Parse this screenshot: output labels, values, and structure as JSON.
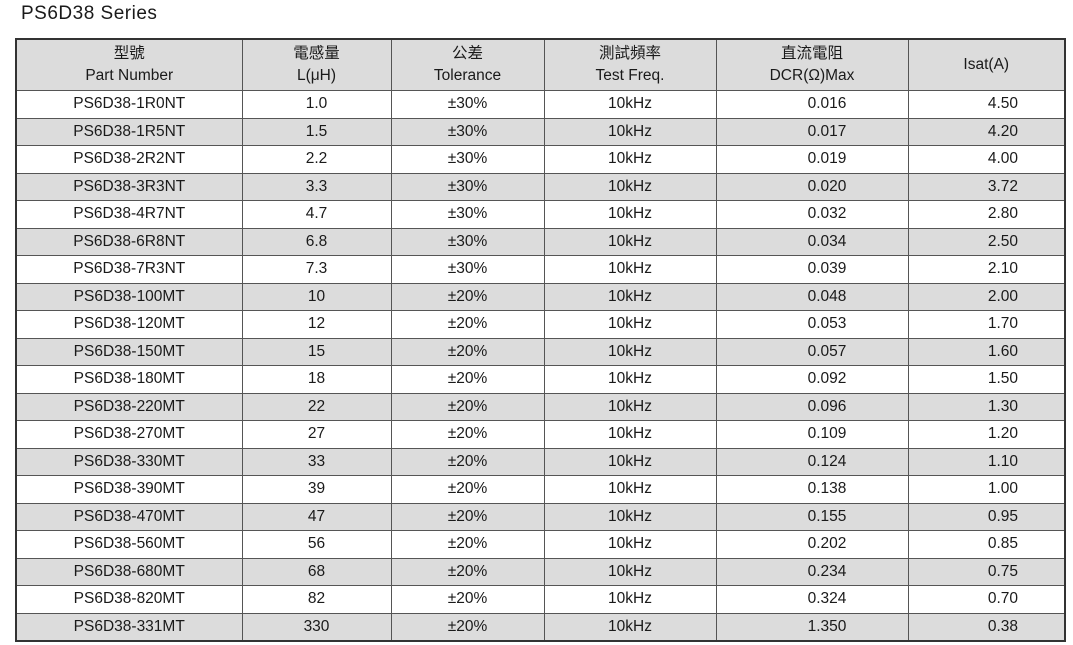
{
  "title": "PS6D38  Series",
  "headers": [
    {
      "zh": "型號",
      "en": "Part Number"
    },
    {
      "zh": "電感量",
      "en": "L(μH)"
    },
    {
      "zh": "公差",
      "en": "Tolerance"
    },
    {
      "zh": "測試頻率",
      "en": "Test Freq."
    },
    {
      "zh": "直流電阻",
      "en": "DCR(Ω)Max"
    },
    {
      "zh": "",
      "en": "Isat(A)"
    }
  ],
  "rows": [
    [
      "PS6D38-1R0NT",
      "1.0",
      "±30%",
      "10kHz",
      "0.016",
      "4.50"
    ],
    [
      "PS6D38-1R5NT",
      "1.5",
      "±30%",
      "10kHz",
      "0.017",
      "4.20"
    ],
    [
      "PS6D38-2R2NT",
      "2.2",
      "±30%",
      "10kHz",
      "0.019",
      "4.00"
    ],
    [
      "PS6D38-3R3NT",
      "3.3",
      "±30%",
      "10kHz",
      "0.020",
      "3.72"
    ],
    [
      "PS6D38-4R7NT",
      "4.7",
      "±30%",
      "10kHz",
      "0.032",
      "2.80"
    ],
    [
      "PS6D38-6R8NT",
      "6.8",
      "±30%",
      "10kHz",
      "0.034",
      "2.50"
    ],
    [
      "PS6D38-7R3NT",
      "7.3",
      "±30%",
      "10kHz",
      "0.039",
      "2.10"
    ],
    [
      "PS6D38-100MT",
      "10",
      "±20%",
      "10kHz",
      "0.048",
      "2.00"
    ],
    [
      "PS6D38-120MT",
      "12",
      "±20%",
      "10kHz",
      "0.053",
      "1.70"
    ],
    [
      "PS6D38-150MT",
      "15",
      "±20%",
      "10kHz",
      "0.057",
      "1.60"
    ],
    [
      "PS6D38-180MT",
      "18",
      "±20%",
      "10kHz",
      "0.092",
      "1.50"
    ],
    [
      "PS6D38-220MT",
      "22",
      "±20%",
      "10kHz",
      "0.096",
      "1.30"
    ],
    [
      "PS6D38-270MT",
      "27",
      "±20%",
      "10kHz",
      "0.109",
      "1.20"
    ],
    [
      "PS6D38-330MT",
      "33",
      "±20%",
      "10kHz",
      "0.124",
      "1.10"
    ],
    [
      "PS6D38-390MT",
      "39",
      "±20%",
      "10kHz",
      "0.138",
      "1.00"
    ],
    [
      "PS6D38-470MT",
      "47",
      "±20%",
      "10kHz",
      "0.155",
      "0.95"
    ],
    [
      "PS6D38-560MT",
      "56",
      "±20%",
      "10kHz",
      "0.202",
      "0.85"
    ],
    [
      "PS6D38-680MT",
      "68",
      "±20%",
      "10kHz",
      "0.234",
      "0.75"
    ],
    [
      "PS6D38-820MT",
      "82",
      "±20%",
      "10kHz",
      "0.324",
      "0.70"
    ],
    [
      "PS6D38-331MT",
      "330",
      "±20%",
      "10kHz",
      "1.350",
      "0.38"
    ]
  ]
}
